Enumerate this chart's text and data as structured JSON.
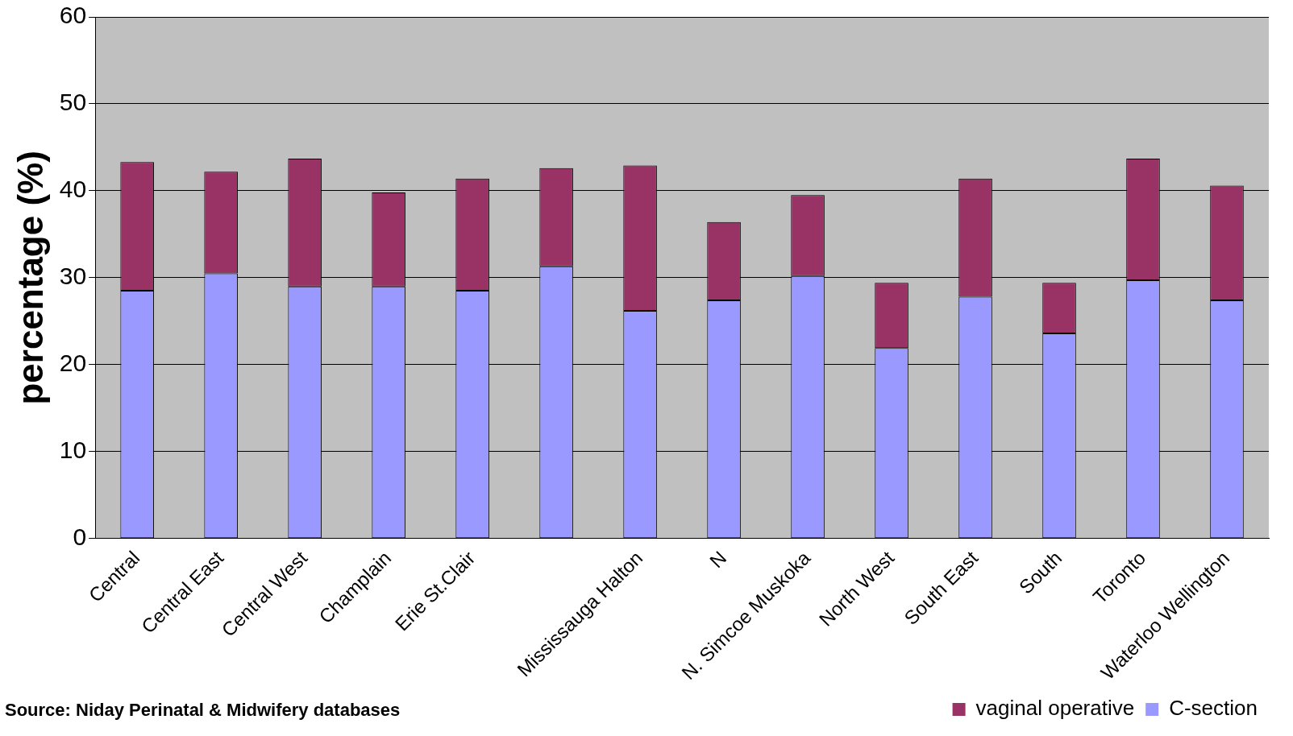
{
  "chart_data": {
    "type": "bar",
    "stacked": true,
    "ylabel": "percentage (%)",
    "categories": [
      "Central",
      "Central East",
      "Central West",
      "Champlain",
      "Erie St.Clair",
      null,
      "Mississauga Halton",
      "N",
      "N. Simcoe Muskoka",
      "North West",
      "South East",
      "South",
      "Toronto",
      "Waterloo Wellington"
    ],
    "series": [
      {
        "name": "C-section",
        "color": "#9999ff",
        "values": [
          28.5,
          30.5,
          29.0,
          29.0,
          28.5,
          31.3,
          26.2,
          27.4,
          30.2,
          21.9,
          27.8,
          23.6,
          29.7,
          27.4
        ]
      },
      {
        "name": "vaginal operative",
        "color": "#993366",
        "values": [
          14.8,
          11.7,
          14.7,
          10.8,
          12.9,
          11.3,
          16.7,
          9.0,
          9.3,
          7.5,
          13.6,
          5.8,
          14.0,
          13.2
        ]
      }
    ],
    "ylim": [
      0,
      60
    ],
    "yticks": [
      0,
      10,
      20,
      30,
      40,
      50,
      60
    ],
    "grid": "y",
    "legend": "bottom right",
    "annotations": [
      "Source: Niday Perinatal & Midwifery databases"
    ]
  }
}
